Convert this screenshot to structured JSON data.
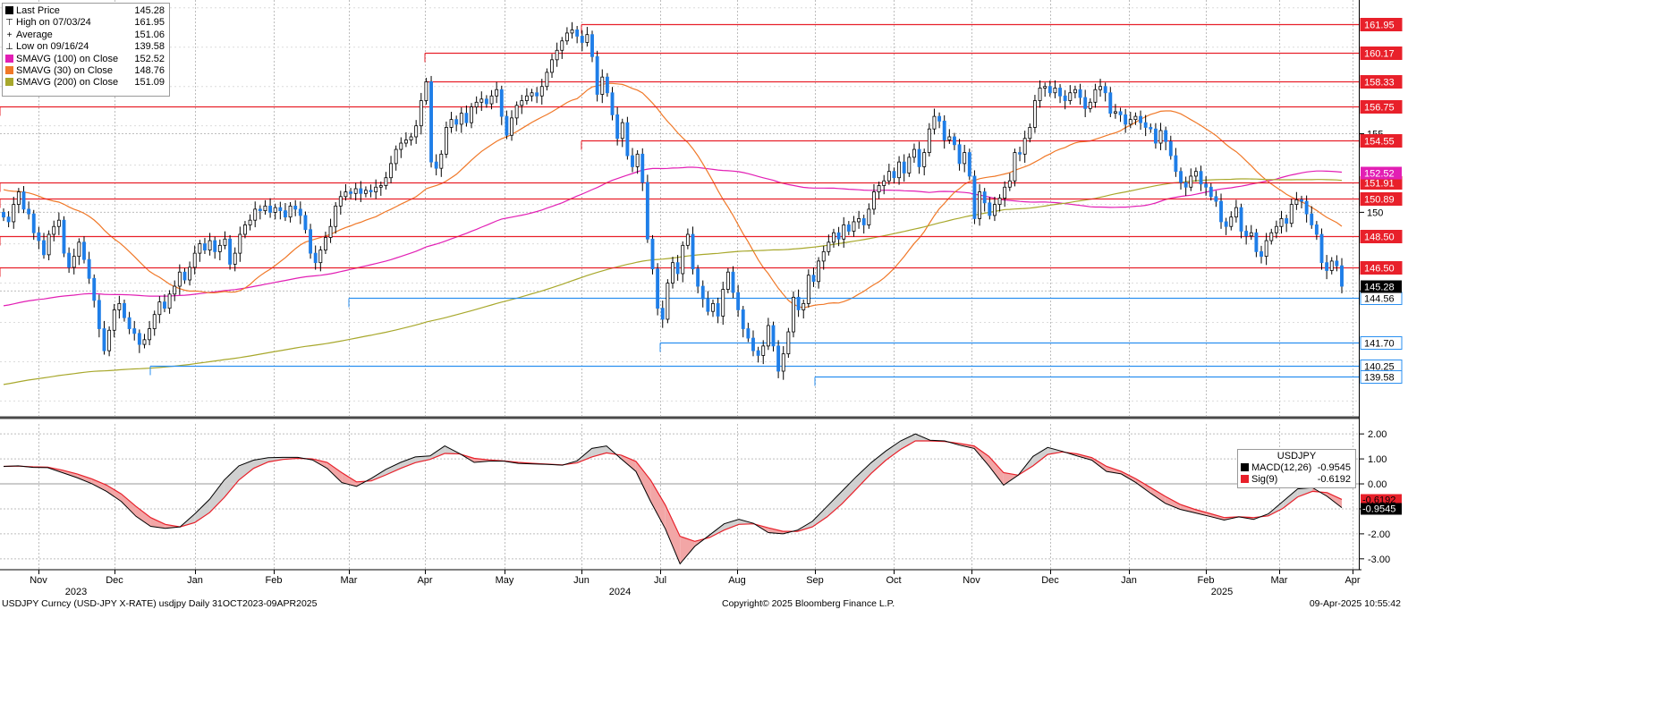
{
  "chart_data": {
    "type": "line",
    "title": "USDJPY Curncy (USD-JPY X-RATE) usdjpy  Daily 31OCT2023-09APR2025",
    "price_panel": {
      "type": "candlestick",
      "ylim": [
        137.0,
        163.5
      ],
      "y_ticks": [
        145,
        150,
        155
      ],
      "last_price": 145.28,
      "candles_close": [
        149.7,
        149.4,
        150.5,
        151.3,
        150.2,
        149.9,
        148.7,
        148.2,
        147.3,
        148.6,
        149.1,
        149.5,
        147.4,
        146.5,
        147.2,
        148.1,
        147.0,
        145.8,
        144.4,
        142.6,
        141.2,
        142.5,
        143.8,
        144.2,
        143.3,
        142.6,
        142.3,
        141.6,
        141.9,
        142.6,
        143.5,
        144.3,
        143.9,
        144.8,
        145.3,
        146.2,
        145.7,
        146.5,
        147.4,
        148.0,
        147.6,
        148.2,
        147.5,
        147.9,
        148.3,
        146.7,
        147.4,
        148.6,
        149.2,
        149.5,
        150.2,
        150.1,
        150.4,
        150.0,
        150.3,
        150.1,
        149.7,
        150.4,
        150.2,
        149.8,
        148.9,
        147.4,
        146.8,
        147.6,
        148.4,
        149.1,
        150.4,
        151.0,
        151.3,
        151.2,
        151.5,
        151.2,
        151.4,
        151.3,
        151.6,
        151.7,
        152.2,
        153.1,
        154.0,
        154.4,
        154.6,
        154.8,
        155.5,
        157.1,
        158.3,
        153.2,
        152.8,
        153.7,
        155.4,
        155.9,
        155.6,
        156.3,
        155.7,
        156.7,
        157.0,
        157.2,
        156.9,
        157.4,
        157.8,
        156.1,
        154.9,
        156.0,
        156.8,
        157.1,
        157.4,
        157.6,
        157.4,
        158.0,
        158.9,
        159.7,
        160.3,
        160.9,
        161.4,
        161.6,
        161.2,
        160.8,
        161.3,
        159.9,
        157.5,
        158.6,
        157.6,
        156.2,
        154.7,
        155.7,
        153.6,
        152.9,
        153.7,
        151.9,
        148.3,
        146.4,
        143.9,
        143.2,
        145.5,
        146.8,
        146.1,
        147.9,
        148.6,
        146.4,
        145.3,
        144.5,
        143.7,
        144.2,
        143.4,
        145.1,
        146.2,
        144.9,
        143.8,
        142.6,
        142.0,
        141.2,
        140.9,
        141.5,
        142.8,
        141.5,
        139.9,
        141.0,
        142.4,
        144.6,
        143.8,
        144.2,
        146.0,
        145.6,
        146.9,
        147.5,
        148.1,
        148.7,
        148.3,
        149.2,
        148.8,
        149.4,
        149.6,
        149.2,
        150.2,
        151.3,
        151.7,
        152.0,
        152.6,
        152.2,
        153.2,
        152.5,
        153.5,
        154.0,
        152.9,
        153.8,
        155.3,
        156.1,
        155.8,
        154.6,
        154.8,
        154.3,
        153.1,
        153.8,
        152.3,
        149.6,
        151.3,
        150.6,
        149.8,
        150.5,
        150.9,
        151.6,
        152.0,
        153.8,
        153.7,
        154.7,
        155.4,
        157.1,
        157.9,
        158.0,
        157.6,
        157.9,
        157.4,
        157.1,
        157.6,
        157.8,
        157.3,
        156.6,
        157.0,
        157.8,
        158.0,
        157.6,
        156.3,
        156.4,
        156.2,
        155.6,
        155.9,
        156.1,
        155.7,
        155.4,
        155.3,
        154.4,
        155.2,
        154.5,
        153.6,
        152.6,
        151.9,
        151.6,
        152.3,
        152.6,
        151.8,
        151.6,
        151.0,
        150.7,
        149.4,
        149.1,
        149.7,
        150.3,
        148.8,
        148.5,
        148.7,
        147.5,
        147.2,
        148.2,
        148.7,
        149.1,
        149.6,
        149.3,
        150.5,
        150.8,
        150.7,
        149.9,
        149.2,
        148.6,
        146.8,
        146.3,
        146.9,
        146.6,
        145.3
      ]
    },
    "moving_averages": [
      {
        "name": "SMAVG (100)  on Close",
        "color": "#e21fb4",
        "last": 152.52
      },
      {
        "name": "SMAVG (30)  on Close",
        "color": "#f07828",
        "last": 148.76
      },
      {
        "name": "SMAVG (200)  on Close",
        "color": "#a8a82c",
        "last": 151.09
      }
    ],
    "legend": {
      "items": [
        {
          "label": "Last Price",
          "value": "145.28",
          "icon": "black-square",
          "color": "#000000"
        },
        {
          "label": "High on 07/03/24",
          "value": "161.95",
          "icon": "high-marker",
          "color": "#555555"
        },
        {
          "label": "Average",
          "value": "151.06",
          "icon": "average-marker",
          "color": "#555555"
        },
        {
          "label": "Low on 09/16/24",
          "value": "139.58",
          "icon": "low-marker",
          "color": "#555555"
        },
        {
          "label": "SMAVG (100)  on Close",
          "value": "152.52",
          "icon": "swatch",
          "color": "#e21fb4"
        },
        {
          "label": "SMAVG (30)  on Close",
          "value": "148.76",
          "icon": "swatch",
          "color": "#f07828"
        },
        {
          "label": "SMAVG (200)  on Close",
          "value": "151.09",
          "icon": "swatch",
          "color": "#a8a82c"
        }
      ]
    },
    "horizontal_levels": [
      {
        "value": 161.95,
        "label": "161.95",
        "color": "#e8202a",
        "start_month": "Jun"
      },
      {
        "value": 160.17,
        "label": "160.17",
        "color": "#e8202a",
        "start_month": "Apr"
      },
      {
        "value": 158.33,
        "label": "158.33",
        "color": "#e8202a",
        "start_month": "Apr"
      },
      {
        "value": 156.75,
        "label": "156.75",
        "color": "#e8202a",
        "start_month": "Nov"
      },
      {
        "value": 154.55,
        "label": "154.55",
        "color": "#e8202a",
        "start_month": "Jun"
      },
      {
        "value": 151.91,
        "label": "151.91",
        "color": "#e8202a",
        "start_month": "Nov"
      },
      {
        "value": 150.89,
        "label": "150.89",
        "color": "#e8202a",
        "start_month": "Nov"
      },
      {
        "value": 148.5,
        "label": "148.50",
        "color": "#e8202a",
        "start_month": "Nov"
      },
      {
        "value": 146.5,
        "label": "146.50",
        "color": "#e8202a",
        "start_month": "Nov"
      },
      {
        "value": 144.56,
        "label": "144.56",
        "color": "#2a8ff0",
        "start_month": "Mar"
      },
      {
        "value": 141.7,
        "label": "141.70",
        "color": "#2a8ff0",
        "start_month": "Jul"
      },
      {
        "value": 140.25,
        "label": "140.25",
        "color": "#2a8ff0",
        "start_month": "Dec"
      },
      {
        "value": 139.58,
        "label": "139.58",
        "color": "#2a8ff0",
        "start_month": "Sep"
      }
    ],
    "axis_badges": [
      {
        "label": "145.28",
        "bg": "#000000",
        "fg": "#ffffff",
        "value": 145.28
      },
      {
        "label": "152.52",
        "bg": "#e21fb4",
        "fg": "#ffffff",
        "value": 152.52
      }
    ],
    "macd_panel": {
      "title": "USDJPY",
      "ylim": [
        -3.4,
        2.4
      ],
      "y_ticks": [
        2.0,
        1.0,
        0.0,
        -1.0,
        -2.0,
        -3.0
      ],
      "y_tick_labels": [
        "2.00",
        "1.00",
        "0.00",
        "-1.00",
        "-2.00",
        "-3.00"
      ],
      "series": [
        {
          "name": "MACD(12,26)",
          "value": "-0.9545",
          "color": "#000000",
          "values": [
            0.7,
            0.72,
            0.66,
            0.65,
            0.45,
            0.25,
            0.01,
            -0.3,
            -0.7,
            -1.3,
            -1.7,
            -1.78,
            -1.72,
            -1.2,
            -0.62,
            0.15,
            0.72,
            0.95,
            1.05,
            1.06,
            1.06,
            0.96,
            0.62,
            0.05,
            -0.1,
            0.22,
            0.58,
            0.86,
            1.08,
            1.12,
            1.52,
            1.22,
            0.86,
            0.91,
            0.91,
            0.82,
            0.8,
            0.78,
            0.75,
            0.92,
            1.42,
            1.52,
            1.0,
            0.5,
            -0.7,
            -1.8,
            -3.2,
            -2.5,
            -2.05,
            -1.6,
            -1.42,
            -1.58,
            -1.95,
            -2.0,
            -1.85,
            -1.5,
            -0.9,
            -0.3,
            0.3,
            0.85,
            1.32,
            1.72,
            2.0,
            1.75,
            1.72,
            1.55,
            1.42,
            0.72,
            -0.05,
            0.35,
            1.1,
            1.46,
            1.3,
            1.12,
            0.95,
            0.5,
            0.4,
            0.05,
            -0.38,
            -0.78,
            -1.02,
            -1.16,
            -1.3,
            -1.45,
            -1.32,
            -1.42,
            -1.2,
            -0.7,
            -0.2,
            -0.15,
            -0.5,
            -0.95
          ]
        },
        {
          "name": "Sig(9)",
          "value": "-0.6192",
          "color": "#e8202a",
          "values": [
            0.7,
            0.71,
            0.68,
            0.67,
            0.55,
            0.4,
            0.2,
            -0.05,
            -0.4,
            -0.9,
            -1.35,
            -1.62,
            -1.72,
            -1.55,
            -1.15,
            -0.55,
            0.15,
            0.62,
            0.88,
            0.98,
            1.02,
            1.0,
            0.86,
            0.45,
            0.08,
            0.12,
            0.36,
            0.62,
            0.85,
            0.98,
            1.22,
            1.2,
            1.02,
            0.96,
            0.92,
            0.86,
            0.82,
            0.79,
            0.76,
            0.84,
            1.08,
            1.24,
            1.15,
            0.9,
            0.15,
            -0.85,
            -2.1,
            -2.3,
            -2.15,
            -1.85,
            -1.62,
            -1.6,
            -1.76,
            -1.9,
            -1.9,
            -1.72,
            -1.32,
            -0.8,
            -0.2,
            0.42,
            0.95,
            1.38,
            1.72,
            1.72,
            1.7,
            1.62,
            1.52,
            1.1,
            0.45,
            0.35,
            0.72,
            1.18,
            1.28,
            1.2,
            1.05,
            0.7,
            0.5,
            0.2,
            -0.15,
            -0.5,
            -0.82,
            -1.02,
            -1.18,
            -1.35,
            -1.32,
            -1.35,
            -1.28,
            -0.98,
            -0.52,
            -0.3,
            -0.35,
            -0.62
          ]
        }
      ],
      "axis_badges": [
        {
          "label": "-0.6192",
          "bg": "#e8202a",
          "fg": "#000000",
          "value": -0.6192
        },
        {
          "label": "-0.9545",
          "bg": "#000000",
          "fg": "#ffffff",
          "value": -0.9545
        }
      ]
    },
    "x_axis": {
      "month_labels": [
        "Nov",
        "Dec",
        "Jan",
        "Feb",
        "Mar",
        "Apr",
        "May",
        "Jun",
        "Jul",
        "Aug",
        "Sep",
        "Oct",
        "Nov",
        "Dec",
        "Jan",
        "Feb",
        "Mar",
        "Apr"
      ],
      "year_labels": [
        "2023",
        "2024",
        "2025"
      ]
    },
    "grid": true,
    "footer": {
      "left": "USDJPY Curncy (USD-JPY X-RATE) usdjpy  Daily 31OCT2023-09APR2025",
      "center": "Copyright© 2025 Bloomberg Finance L.P.",
      "right": "09-Apr-2025 10:55:42"
    }
  }
}
